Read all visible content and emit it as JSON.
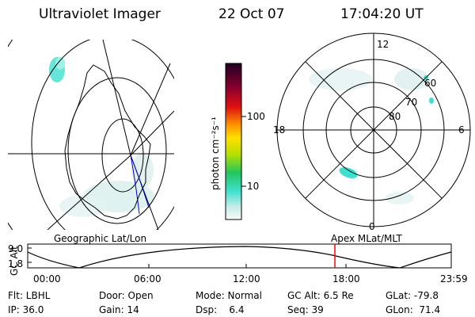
{
  "header": {
    "title": "Ultraviolet Imager",
    "date": "22 Oct 07",
    "time": "17:04:20 UT"
  },
  "colorbar": {
    "unit_label": "photon cm⁻²s⁻¹",
    "ticks": [
      "100",
      "10"
    ]
  },
  "polar_plot": {
    "mlt_labels": {
      "top": "12",
      "right": "6",
      "bottom": "0",
      "left": "18"
    },
    "lat_labels": [
      "60",
      "70",
      "80"
    ]
  },
  "timeline": {
    "left_title": "Geographic Lat/Lon",
    "right_title": "Apex MLat/MLT",
    "y_axis_label": "GC Alt",
    "y_ticks": [
      "9.0",
      "1.8"
    ],
    "x_ticks": [
      "00:00",
      "06:00",
      "12:00",
      "18:00",
      "23:59"
    ],
    "marker_time": "17:04"
  },
  "footer": {
    "filter": "Flt: LBHL",
    "door": "Door: Open",
    "mode": "Mode: Normal",
    "gc_alt": "GC Alt: 6.5 Re",
    "glat": "GLat: -79.8",
    "ip": "IP: 36.0",
    "gain": "Gain: 14",
    "dsp": "Dsp:    6.4",
    "seq": "Seq: 39",
    "glon": "GLon:  71.4"
  },
  "colors": {
    "aurora_cyan": "#40e0d0",
    "aurora_light": "#c8ece8",
    "marker_red": "#ff0000",
    "track_blue": "#0000cc"
  }
}
